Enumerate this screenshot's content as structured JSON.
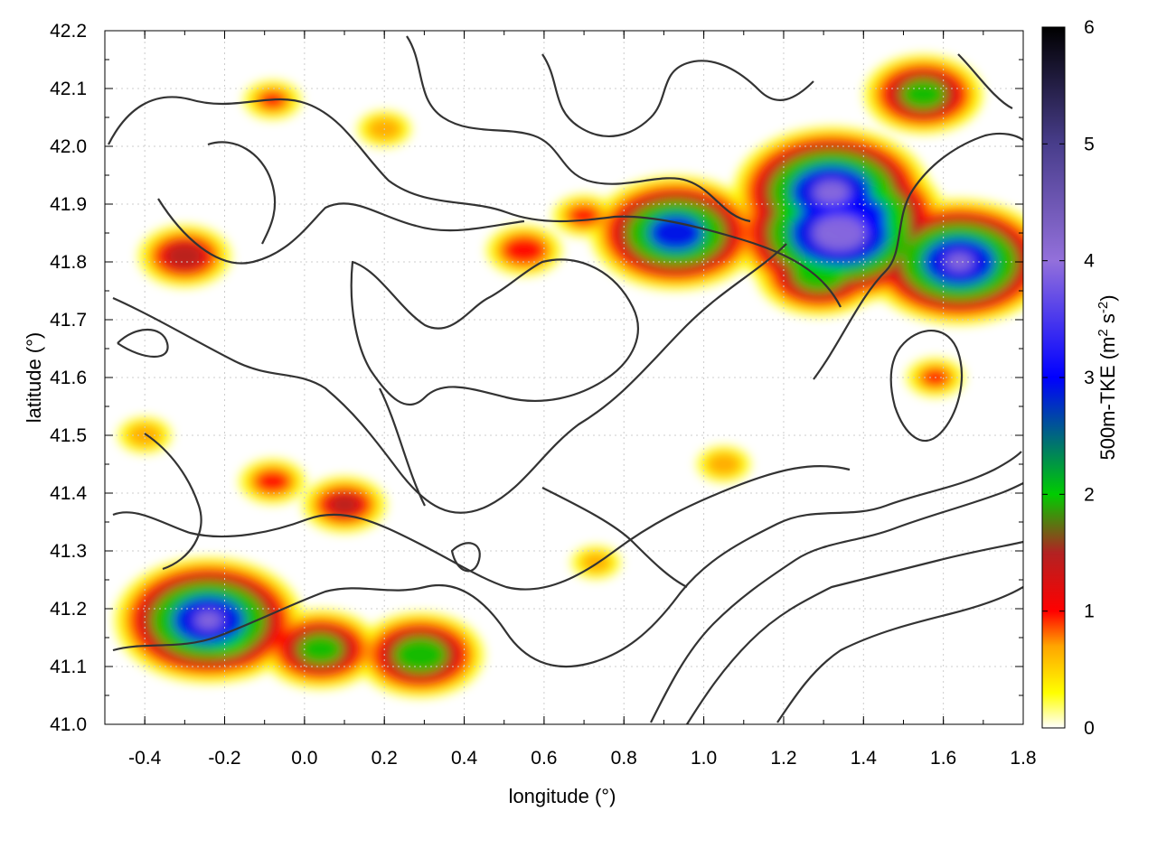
{
  "chart_data": {
    "type": "heatmap",
    "title": "",
    "xlabel": "longitude (°)",
    "ylabel": "latitude (°)",
    "colorbar_label_parts": [
      "500m-TKE (m",
      "2",
      " s",
      "-2",
      ")"
    ],
    "xlim": [
      -0.5,
      1.8
    ],
    "ylim": [
      41.0,
      42.2
    ],
    "zlim": [
      0,
      6
    ],
    "x_ticks": [
      -0.4,
      -0.2,
      0.0,
      0.2,
      0.4,
      0.6,
      0.8,
      1.0,
      1.2,
      1.4,
      1.6,
      1.8
    ],
    "x_tick_labels": [
      "-0.4",
      "-0.2",
      "0.0",
      "0.2",
      "0.4",
      "0.6",
      "0.8",
      "1.0",
      "1.2",
      "1.4",
      "1.6",
      "1.8"
    ],
    "y_ticks": [
      41.0,
      41.1,
      41.2,
      41.3,
      41.4,
      41.5,
      41.6,
      41.7,
      41.8,
      41.9,
      42.0,
      42.1,
      42.2
    ],
    "y_tick_labels": [
      "41.0",
      "41.1",
      "41.2",
      "41.3",
      "41.4",
      "41.5",
      "41.6",
      "41.7",
      "41.8",
      "41.9",
      "42.0",
      "42.1",
      "42.2"
    ],
    "colorbar_ticks": [
      0,
      1,
      2,
      3,
      4,
      5,
      6
    ],
    "colorbar_tick_labels": [
      "0",
      "1",
      "2",
      "3",
      "4",
      "5",
      "6"
    ],
    "colormap": [
      {
        "v": 0.0,
        "color": "#ffffff"
      },
      {
        "v": 0.3,
        "color": "#ffff00"
      },
      {
        "v": 0.7,
        "color": "#ffa500"
      },
      {
        "v": 1.0,
        "color": "#ff0000"
      },
      {
        "v": 1.5,
        "color": "#b22222"
      },
      {
        "v": 2.0,
        "color": "#00cc00"
      },
      {
        "v": 3.0,
        "color": "#0000ff"
      },
      {
        "v": 4.0,
        "color": "#9370db"
      },
      {
        "v": 5.0,
        "color": "#483d8b"
      },
      {
        "v": 6.0,
        "color": "#000000"
      }
    ],
    "grid": true,
    "legend": "colorbar at right",
    "hotspots": [
      {
        "x": 1.34,
        "y": 41.85,
        "value": 4.6
      },
      {
        "x": 1.32,
        "y": 41.92,
        "value": 4.2
      },
      {
        "x": 1.38,
        "y": 41.88,
        "value": 3.8
      },
      {
        "x": 1.29,
        "y": 41.78,
        "value": 2.6
      },
      {
        "x": 1.22,
        "y": 41.9,
        "value": 1.6
      },
      {
        "x": 0.93,
        "y": 41.85,
        "value": 3.6
      },
      {
        "x": 1.64,
        "y": 41.8,
        "value": 4.0
      },
      {
        "x": 1.55,
        "y": 42.09,
        "value": 2.4
      },
      {
        "x": 1.6,
        "y": 42.08,
        "value": 1.4
      },
      {
        "x": -0.24,
        "y": 41.18,
        "value": 4.0
      },
      {
        "x": -0.19,
        "y": 41.14,
        "value": 2.2
      },
      {
        "x": 0.04,
        "y": 41.13,
        "value": 2.4
      },
      {
        "x": 0.29,
        "y": 41.12,
        "value": 2.6
      },
      {
        "x": -0.3,
        "y": 41.81,
        "value": 1.8
      },
      {
        "x": 0.55,
        "y": 41.82,
        "value": 1.4
      },
      {
        "x": 0.1,
        "y": 41.38,
        "value": 1.6
      },
      {
        "x": -0.08,
        "y": 41.42,
        "value": 1.2
      },
      {
        "x": 0.7,
        "y": 41.88,
        "value": 1.1
      },
      {
        "x": -0.08,
        "y": 42.08,
        "value": 1.0
      },
      {
        "x": 1.58,
        "y": 41.6,
        "value": 1.0
      },
      {
        "x": 0.2,
        "y": 42.03,
        "value": 0.9
      },
      {
        "x": 1.05,
        "y": 41.45,
        "value": 0.9
      },
      {
        "x": -0.4,
        "y": 41.5,
        "value": 0.9
      },
      {
        "x": 0.73,
        "y": 41.28,
        "value": 0.8
      }
    ]
  }
}
